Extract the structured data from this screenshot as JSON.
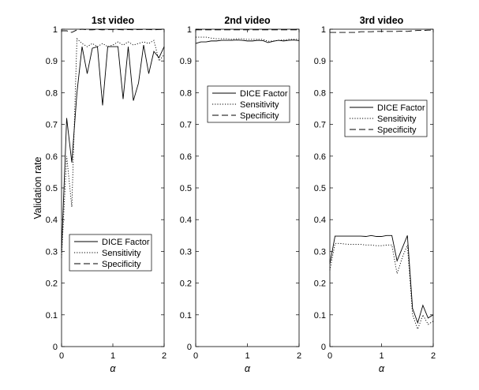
{
  "figure": {
    "ylabel": "Validation rate"
  },
  "chart_data": [
    {
      "type": "line",
      "title": "1st video",
      "xlabel": "α",
      "ylabel": "Validation rate",
      "xlim": [
        0,
        2
      ],
      "ylim": [
        0,
        1
      ],
      "xticks": [
        "0",
        "1",
        "2"
      ],
      "yticks": [
        "0",
        "0.1",
        "0.2",
        "0.3",
        "0.4",
        "0.5",
        "0.6",
        "0.7",
        "0.8",
        "0.9",
        "1"
      ],
      "legend_position": "lower-center",
      "legend": [
        "DICE Factor",
        "Sensitivity",
        "Specificity"
      ],
      "x": [
        0,
        0.1,
        0.2,
        0.3,
        0.4,
        0.5,
        0.6,
        0.7,
        0.8,
        0.9,
        1.0,
        1.1,
        1.2,
        1.3,
        1.4,
        1.5,
        1.6,
        1.7,
        1.8,
        1.9,
        2.0
      ],
      "series": [
        {
          "name": "DICE Factor",
          "style": "solid",
          "values": [
            0.3,
            0.72,
            0.58,
            0.8,
            0.945,
            0.86,
            0.94,
            0.945,
            0.76,
            0.945,
            0.945,
            0.945,
            0.78,
            0.945,
            0.775,
            0.83,
            0.95,
            0.86,
            0.93,
            0.91,
            0.945
          ]
        },
        {
          "name": "Sensitivity",
          "style": "dotted",
          "values": [
            0.28,
            0.6,
            0.44,
            0.97,
            0.955,
            0.945,
            0.955,
            0.945,
            0.955,
            0.945,
            0.95,
            0.96,
            0.95,
            0.96,
            0.95,
            0.955,
            0.96,
            0.955,
            0.965,
            0.9,
            0.92
          ]
        },
        {
          "name": "Specificity",
          "style": "dashed",
          "values": [
            0.995,
            0.995,
            0.99,
            0.998,
            1.0,
            0.998,
            0.998,
            0.999,
            0.998,
            0.999,
            0.999,
            0.999,
            0.998,
            0.999,
            0.998,
            0.999,
            0.999,
            0.999,
            0.998,
            0.999,
            0.999
          ]
        }
      ]
    },
    {
      "type": "line",
      "title": "2nd video",
      "xlabel": "α",
      "ylabel": "",
      "xlim": [
        0,
        2
      ],
      "ylim": [
        0,
        1
      ],
      "xticks": [
        "0",
        "1",
        "2"
      ],
      "yticks": [
        "0",
        "0.1",
        "0.2",
        "0.3",
        "0.4",
        "0.5",
        "0.6",
        "0.7",
        "0.8",
        "0.9",
        "1"
      ],
      "legend_position": "upper-center",
      "legend": [
        "DICE Factor",
        "Sensitivity",
        "Specificity"
      ],
      "x": [
        0,
        0.1,
        0.2,
        0.3,
        0.4,
        0.5,
        0.6,
        0.7,
        0.8,
        0.9,
        1.0,
        1.1,
        1.2,
        1.3,
        1.4,
        1.5,
        1.6,
        1.7,
        1.8,
        1.9,
        2.0
      ],
      "series": [
        {
          "name": "DICE Factor",
          "style": "solid",
          "values": [
            0.955,
            0.96,
            0.96,
            0.963,
            0.963,
            0.965,
            0.965,
            0.965,
            0.966,
            0.965,
            0.963,
            0.963,
            0.965,
            0.964,
            0.958,
            0.962,
            0.965,
            0.963,
            0.965,
            0.966,
            0.964
          ]
        },
        {
          "name": "Sensitivity",
          "style": "dotted",
          "values": [
            0.975,
            0.975,
            0.975,
            0.972,
            0.97,
            0.97,
            0.97,
            0.968,
            0.97,
            0.97,
            0.968,
            0.968,
            0.968,
            0.968,
            0.962,
            0.963,
            0.965,
            0.966,
            0.968,
            0.968,
            0.968
          ]
        },
        {
          "name": "Specificity",
          "style": "dashed",
          "values": [
            0.998,
            0.998,
            0.998,
            0.998,
            0.998,
            0.998,
            0.998,
            0.998,
            0.998,
            0.998,
            0.998,
            0.998,
            0.998,
            0.998,
            0.998,
            0.998,
            0.998,
            0.998,
            0.998,
            0.998,
            0.998
          ]
        }
      ]
    },
    {
      "type": "line",
      "title": "3rd video",
      "xlabel": "α",
      "ylabel": "",
      "xlim": [
        0,
        2
      ],
      "ylim": [
        0,
        1
      ],
      "xticks": [
        "0",
        "1",
        "2"
      ],
      "yticks": [
        "0",
        "0.1",
        "0.2",
        "0.3",
        "0.4",
        "0.5",
        "0.6",
        "0.7",
        "0.8",
        "0.9",
        "1"
      ],
      "legend_position": "upper-center",
      "legend": [
        "DICE Factor",
        "Sensitivity",
        "Specificity"
      ],
      "x": [
        0,
        0.1,
        0.2,
        0.3,
        0.4,
        0.5,
        0.6,
        0.7,
        0.8,
        0.9,
        1.0,
        1.1,
        1.2,
        1.3,
        1.4,
        1.5,
        1.6,
        1.7,
        1.8,
        1.9,
        2.0
      ],
      "series": [
        {
          "name": "DICE Factor",
          "style": "solid",
          "values": [
            0.26,
            0.348,
            0.348,
            0.348,
            0.348,
            0.348,
            0.348,
            0.347,
            0.35,
            0.347,
            0.347,
            0.35,
            0.35,
            0.27,
            0.31,
            0.35,
            0.12,
            0.075,
            0.13,
            0.09,
            0.1
          ]
        },
        {
          "name": "Sensitivity",
          "style": "dotted",
          "values": [
            0.24,
            0.325,
            0.325,
            0.323,
            0.322,
            0.322,
            0.322,
            0.32,
            0.32,
            0.318,
            0.318,
            0.32,
            0.32,
            0.23,
            0.28,
            0.32,
            0.1,
            0.055,
            0.1,
            0.07,
            0.08
          ]
        },
        {
          "name": "Specificity",
          "style": "dashed",
          "values": [
            0.99,
            0.99,
            0.99,
            0.99,
            0.99,
            0.99,
            0.992,
            0.992,
            0.992,
            0.993,
            0.993,
            0.993,
            0.993,
            0.993,
            0.994,
            0.993,
            0.995,
            0.996,
            0.996,
            0.997,
            0.997
          ]
        }
      ]
    }
  ]
}
